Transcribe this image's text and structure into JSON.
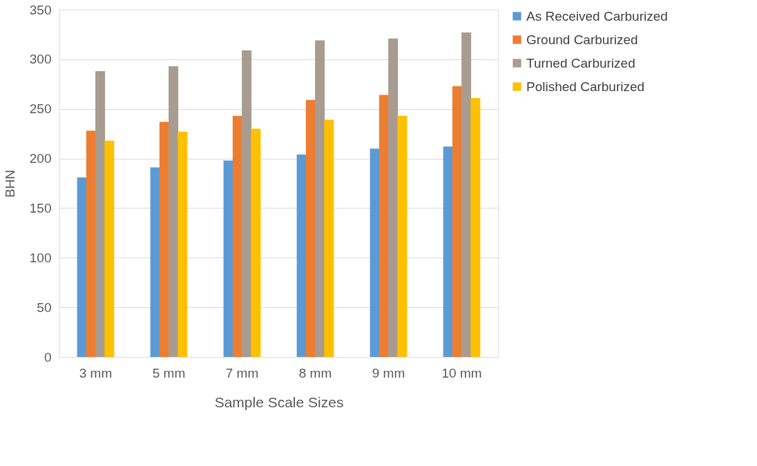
{
  "chart_data": {
    "type": "bar",
    "xlabel": "Sample Scale Sizes",
    "ylabel": "BHN",
    "categories": [
      "3 mm",
      "5 mm",
      "7 mm",
      "8 mm",
      "9 mm",
      "10 mm"
    ],
    "series": [
      {
        "name": "As Received Carburized",
        "color": "#5b9bd5",
        "values": [
          181,
          191,
          198,
          204,
          210,
          212
        ]
      },
      {
        "name": "Ground Carburized",
        "color": "#ed7d31",
        "values": [
          228,
          237,
          243,
          259,
          264,
          273
        ]
      },
      {
        "name": "Turned Carburized",
        "color": "#a89b8f",
        "values": [
          288,
          293,
          309,
          319,
          321,
          327
        ]
      },
      {
        "name": "Polished Carburized",
        "color": "#ffc000",
        "values": [
          218,
          227,
          230,
          239,
          243,
          261
        ]
      }
    ],
    "ylim": [
      0,
      350
    ],
    "yticks": [
      0,
      50,
      100,
      150,
      200,
      250,
      300,
      350
    ],
    "grid": "y",
    "legend": "right"
  }
}
